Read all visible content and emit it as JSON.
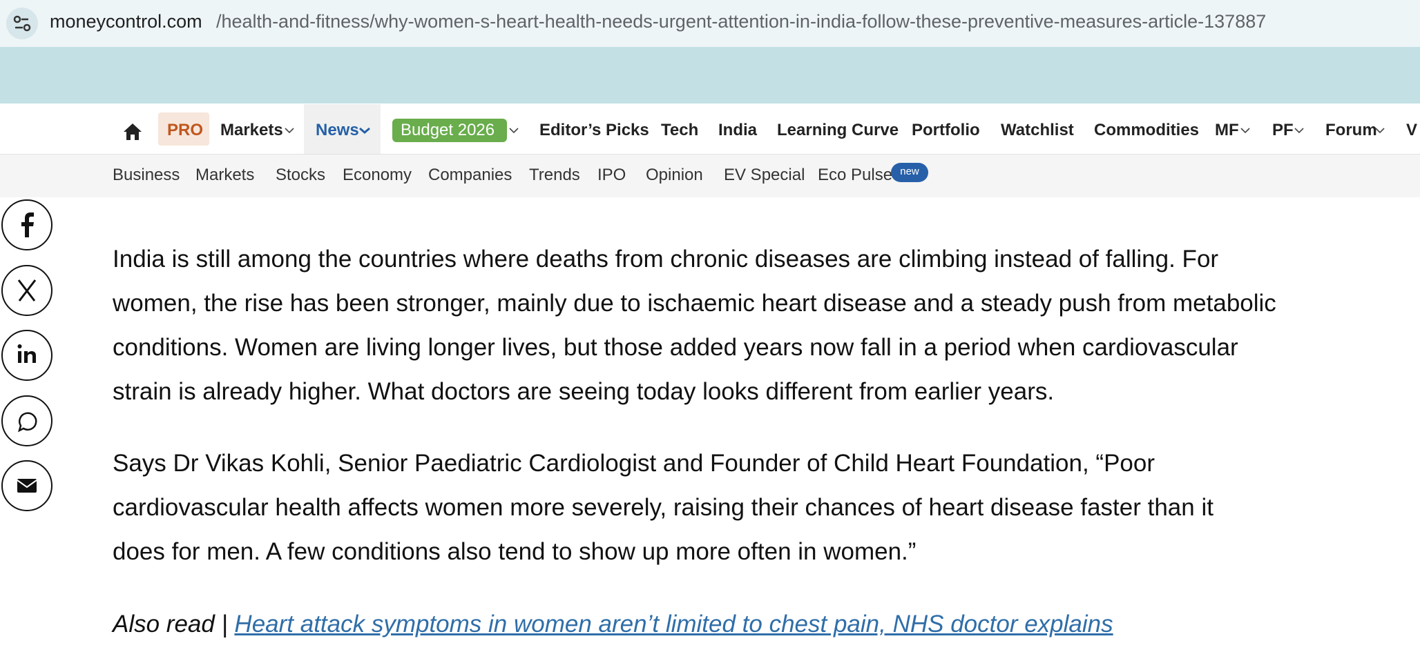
{
  "browser": {
    "url_domain": "moneycontrol.com",
    "url_path": "/health-and-fitness/why-women-s-heart-health-needs-urgent-attention-in-india-follow-these-preventive-measures-article-137887"
  },
  "nav": {
    "primary": [
      "PRO",
      "Markets",
      "News",
      "Budget 2026",
      "Editor’s Picks",
      "Tech",
      "India",
      "Learning Curve",
      "Portfolio",
      "Watchlist",
      "Commodities",
      "MF",
      "PF",
      "Forum",
      "V"
    ],
    "secondary": [
      "Business",
      "Markets",
      "Stocks",
      "Economy",
      "Companies",
      "Trends",
      "IPO",
      "Opinion",
      "EV Special",
      "Eco Pulse"
    ],
    "badge": "new"
  },
  "article": {
    "paragraphs": [
      [
        "India is still among the countries where deaths from chronic diseases are climbing instead of falling. For",
        "women, the rise has been stronger, mainly due to ischaemic heart disease and a steady push from metabolic",
        "conditions. Women are living longer lives, but those added years now fall in a period when cardiovascular",
        "strain is already higher. What doctors are seeing today looks different from earlier years."
      ],
      [
        "Says Dr Vikas Kohli, Senior Paediatric Cardiologist and Founder of Child Heart Foundation, “Poor",
        "cardiovascular health affects women more severely, raising their chances of heart disease faster than it",
        "does for men. A few conditions also tend to show up more often in women.”"
      ]
    ],
    "also_read": {
      "label": "Also read |",
      "link": "Heart attack symptoms in women aren’t limited to chest pain, NHS doctor explains"
    }
  }
}
